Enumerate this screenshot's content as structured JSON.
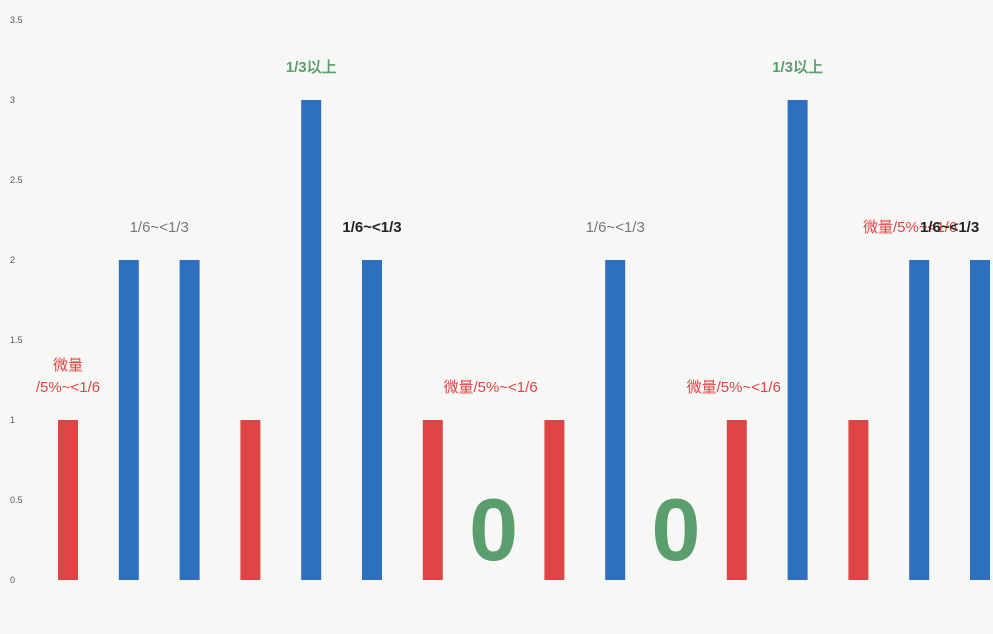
{
  "chart_data": {
    "type": "bar",
    "ylim": [
      0,
      3.5
    ],
    "yticks": [
      "0",
      "0.5",
      "1",
      "1.5",
      "2",
      "2.5",
      "3",
      "3.5"
    ],
    "categories": [
      "",
      "",
      "",
      "",
      "",
      "",
      "",
      "",
      "",
      "",
      "",
      "",
      "",
      "",
      "",
      ""
    ],
    "values": [
      1,
      2,
      2,
      1,
      3,
      2,
      1,
      0,
      1,
      2,
      0,
      1,
      3,
      1,
      2,
      2
    ],
    "bar_colors": [
      "#e04545",
      "#2f6fc0",
      "#2f6fc0",
      "#e04545",
      "#2f6fc0",
      "#2f6fc0",
      "#e04545",
      "#2f6fc0",
      "#e04545",
      "#2f6fc0",
      "#2f6fc0",
      "#e04545",
      "#2f6fc0",
      "#e04545",
      "#2f6fc0",
      "#2f6fc0"
    ],
    "colors": {
      "red": "#e04545",
      "blue": "#2f6fc0",
      "green": "#5a9e6e",
      "gray": "#777777",
      "black": "#222222"
    },
    "annotations": [
      {
        "lines": [
          "微量",
          "/5%~<1/6"
        ],
        "color": "#e04545",
        "bar": 0
      },
      {
        "lines": [
          "1/6~<1/3"
        ],
        "color": "#777777",
        "bar": 1.5
      },
      {
        "lines": [
          "1/3以上"
        ],
        "color": "#5a9e6e",
        "bar": 4
      },
      {
        "lines": [
          "1/6~<1/3"
        ],
        "color": "#222222",
        "bar": 5
      },
      {
        "lines": [
          "微量/5%~<1/6"
        ],
        "color": "#e04545",
        "bar": 6.95
      },
      {
        "lines": [
          "1/6~<1/3"
        ],
        "color": "#777777",
        "bar": 9
      },
      {
        "lines": [
          "微量/5%~<1/6"
        ],
        "color": "#e04545",
        "bar": 10.95
      },
      {
        "lines": [
          "1/3以上"
        ],
        "color": "#5a9e6e",
        "bar": 12
      },
      {
        "lines": [
          "微量/5%~<1/6"
        ],
        "color": "#e04545",
        "bar": 13.85
      },
      {
        "lines": [
          "1/6~<1/3"
        ],
        "color": "#222222",
        "bar": 14.5
      }
    ],
    "zero_labels": [
      {
        "text": "0",
        "color": "#5a9e6e",
        "bar": 7
      },
      {
        "text": "0",
        "color": "#5a9e6e",
        "bar": 10
      }
    ]
  }
}
